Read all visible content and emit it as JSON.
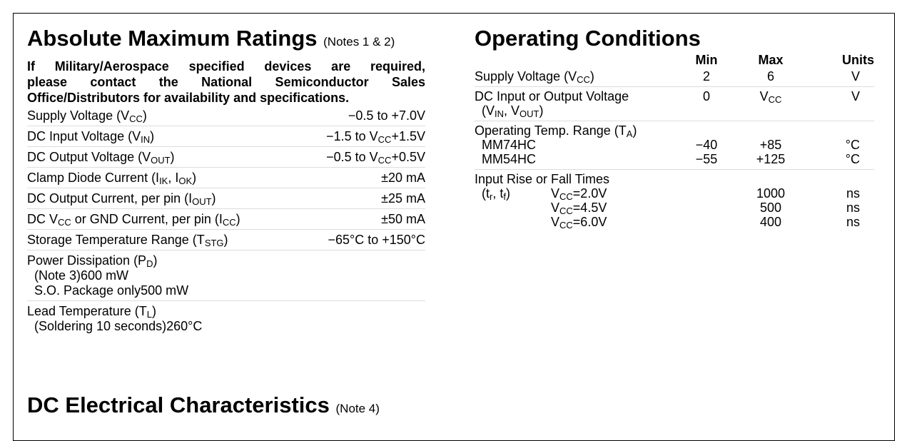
{
  "amr": {
    "title": "Absolute Maximum Ratings",
    "notes": "(Notes 1 & 2)",
    "intro_lines": [
      "If Military/Aerospace specified devices are required,",
      "please contact the National Semiconductor Sales",
      "Office/Distributors for availability and specifications."
    ],
    "rows": [
      {
        "label": "Supply Voltage (V",
        "sub": "CC",
        "after": ")",
        "value": "−0.5 to +7.0V"
      },
      {
        "label": "DC Input Voltage (V",
        "sub": "IN",
        "after": ")",
        "value": "−1.5 to V",
        "vsub": "CC",
        "vafter": "+1.5V"
      },
      {
        "label": "DC Output Voltage (V",
        "sub": "OUT",
        "after": ")",
        "value": "−0.5 to V",
        "vsub": "CC",
        "vafter": "+0.5V"
      },
      {
        "label": "Clamp Diode Current (I",
        "sub": "IK",
        "after": ", I",
        "sub2": "OK",
        "after2": ")",
        "value": "±20 mA"
      },
      {
        "label": "DC Output Current, per pin (I",
        "sub": "OUT",
        "after": ")",
        "value": "±25 mA"
      },
      {
        "label": "DC V",
        "sub": "CC",
        "after": " or GND Current, per pin (I",
        "sub2": "CC",
        "after2": ")",
        "value": "±50 mA"
      },
      {
        "label": "Storage Temperature Range (T",
        "sub": "STG",
        "after": ")",
        "value": "−65°C to +150°C"
      }
    ],
    "power": {
      "label": "Power Dissipation (P",
      "sub": "D",
      "after": ")",
      "note3_label": "(Note 3)",
      "note3_value": "600 mW",
      "so_label": "S.O. Package only",
      "so_value": "500 mW"
    },
    "lead": {
      "label": "Lead Temperature (T",
      "sub": "L",
      "after": ")",
      "sub_label": "(Soldering 10 seconds)",
      "value": "260°C"
    }
  },
  "oc": {
    "title": "Operating Conditions",
    "headers": {
      "min": "Min",
      "max": "Max",
      "units": "Units"
    },
    "supply": {
      "label": "Supply Voltage (V",
      "sub": "CC",
      "after": ")",
      "min": "2",
      "max": "6",
      "units": "V"
    },
    "dcio": {
      "label": "DC Input or Output Voltage",
      "min": "0",
      "max": "V",
      "max_sub": "CC",
      "units": "V",
      "line2": "(V",
      "s1": "IN",
      "mid": ", V",
      "s2": "OUT",
      "end": ")"
    },
    "temp": {
      "label": "Operating Temp. Range (T",
      "sub": "A",
      "after": ")",
      "r1": {
        "name": "MM74HC",
        "min": "−40",
        "max": "+85",
        "units": "°C"
      },
      "r2": {
        "name": "MM54HC",
        "min": "−55",
        "max": "+125",
        "units": "°C"
      }
    },
    "rise": {
      "label": "Input Rise or Fall Times",
      "tr": "(t",
      "tr_sub": "r",
      "tr_mid": ", t",
      "tf_sub": "f",
      "tr_end": ")",
      "rows": [
        {
          "v": "V",
          "vs": "CC",
          "cond": "=2.0V",
          "max": "1000",
          "units": "ns"
        },
        {
          "v": "V",
          "vs": "CC",
          "cond": "=4.5V",
          "max": "500",
          "units": "ns"
        },
        {
          "v": "V",
          "vs": "CC",
          "cond": "=6.0V",
          "max": "400",
          "units": "ns"
        }
      ]
    }
  },
  "dc": {
    "title": "DC Electrical Characteristics",
    "note": "(Note 4)"
  }
}
